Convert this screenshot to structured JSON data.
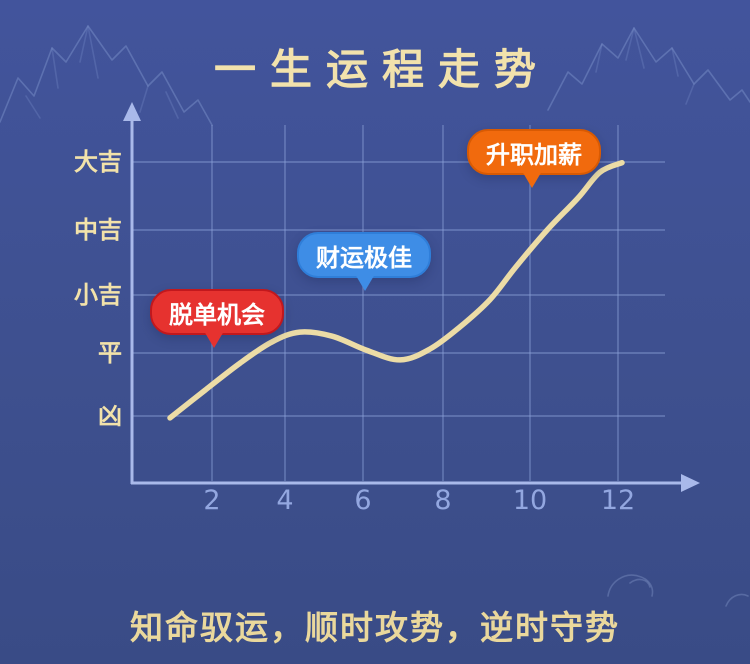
{
  "page": {
    "title": "一生运程走势",
    "footer": "知命驭运，顺时攻势，逆时守势"
  },
  "colors": {
    "background": "#3e508f",
    "title_text": "#f2e2ac",
    "footer_text": "#ead89c",
    "axis": "#a9b9ea",
    "gridline": "#8da2d8",
    "curve": "#ecdca6",
    "x_tick_text": "#93a7e0",
    "y_label_text": "#f2e2aa",
    "bubble_text": "#ffffff"
  },
  "chart_data": {
    "type": "line",
    "title": "一生运程走势",
    "xlabel": "",
    "ylabel": "",
    "x_ticks": [
      2,
      4,
      6,
      8,
      10,
      12
    ],
    "x_range": [
      0.5,
      12.5
    ],
    "y_levels": [
      {
        "level": 5,
        "label": "大吉"
      },
      {
        "level": 4,
        "label": "中吉"
      },
      {
        "level": 3,
        "label": "小吉"
      },
      {
        "level": 2,
        "label": "平"
      },
      {
        "level": 1,
        "label": "凶"
      }
    ],
    "grid": true,
    "legend": false,
    "series": [
      {
        "name": "一生运程",
        "points": [
          {
            "month": 0.85,
            "level": 0.97
          },
          {
            "month": 1.81,
            "level": 1.41
          },
          {
            "month": 2.77,
            "level": 1.84
          },
          {
            "month": 3.64,
            "level": 2.19
          },
          {
            "month": 4.38,
            "level": 2.36
          },
          {
            "month": 5.21,
            "level": 2.29
          },
          {
            "month": 6.08,
            "level": 2.05
          },
          {
            "month": 6.93,
            "level": 1.89
          },
          {
            "month": 7.68,
            "level": 2.07
          },
          {
            "month": 8.39,
            "level": 2.45
          },
          {
            "month": 9.08,
            "level": 2.92
          },
          {
            "month": 9.66,
            "level": 3.42
          },
          {
            "month": 10.39,
            "level": 4.0
          },
          {
            "month": 11.09,
            "level": 4.47
          },
          {
            "month": 11.59,
            "level": 4.85
          },
          {
            "month": 12.09,
            "level": 4.99
          }
        ]
      }
    ],
    "annotations": [
      {
        "label": "脱单机会",
        "month": 2,
        "color": "#e6322f",
        "border_color": "#c2181d",
        "text_color": "#ffffff"
      },
      {
        "label": "财运极佳",
        "month": 6,
        "color": "#3e8de6",
        "border_color": "#2f7ed9",
        "text_color": "#ffffff"
      },
      {
        "label": "升职加薪",
        "month": 10,
        "color": "#f16a0d",
        "border_color": "#d85a03",
        "text_color": "#ffffff"
      }
    ]
  }
}
